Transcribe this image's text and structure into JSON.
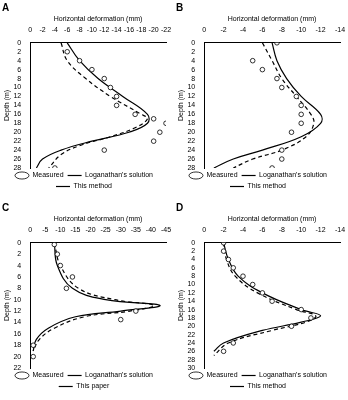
{
  "chart_data": [
    {
      "type": "scatter",
      "title": "A",
      "x_label": "Horizontal deformation (mm)",
      "y_label": "Depth (m)",
      "xlim": [
        0,
        -22
      ],
      "xticks": [
        0,
        -2,
        -4,
        -6,
        -8,
        -10,
        -12,
        -14,
        -16,
        -18,
        -20,
        -22
      ],
      "ylim": [
        28,
        0
      ],
      "yticks": [
        0,
        2,
        4,
        6,
        8,
        10,
        12,
        14,
        16,
        18,
        20,
        22,
        24,
        26,
        28
      ],
      "grid": false,
      "legend": "bottom",
      "series": [
        {
          "name": "Measured",
          "type": "scatter",
          "marker": "circle",
          "color": "#000000",
          "x": [
            -6,
            -8,
            -10,
            -12,
            -13,
            -14,
            -14,
            -17,
            -20,
            -22,
            -21,
            -20,
            -12,
            -4
          ],
          "y": [
            2,
            4,
            6,
            8,
            10,
            12,
            14,
            16,
            17,
            18,
            20,
            22,
            24,
            28
          ]
        },
        {
          "name": "Loganathan's solution",
          "type": "line",
          "line_style": "dashed",
          "color": "#000000",
          "x": [
            -5,
            -6,
            -9,
            -13,
            -18,
            -19,
            -17,
            -13,
            -8,
            -5,
            -3
          ],
          "y": [
            0,
            4,
            8,
            12,
            16,
            17,
            19,
            21,
            23,
            25,
            28
          ]
        },
        {
          "name": "This method",
          "type": "line",
          "line_style": "solid",
          "color": "#000000",
          "x": [
            -6,
            -8,
            -11,
            -15,
            -19,
            -19,
            -16,
            -10,
            -5,
            -2,
            -1
          ],
          "y": [
            0,
            4,
            8,
            12,
            16,
            18,
            20,
            22,
            24,
            26,
            28
          ]
        }
      ]
    },
    {
      "type": "scatter",
      "title": "B",
      "x_label": "Horizontal deformation (mm)",
      "y_label": "Depth (m)",
      "xlim": [
        0,
        -14
      ],
      "xticks": [
        0,
        -2,
        -4,
        -6,
        -8,
        -10,
        -12,
        -14
      ],
      "ylim": [
        28,
        0
      ],
      "yticks": [
        0,
        2,
        4,
        6,
        8,
        10,
        12,
        14,
        16,
        18,
        20,
        22,
        24,
        26,
        28
      ],
      "grid": false,
      "legend": "bottom",
      "series": [
        {
          "name": "Measured",
          "type": "scatter",
          "marker": "circle",
          "color": "#000000",
          "x": [
            -7.5,
            -5,
            -6,
            -7.5,
            -8,
            -9.5,
            -10,
            -10,
            -10,
            -9,
            -8,
            -8,
            -7
          ],
          "y": [
            0,
            4,
            6,
            8,
            10,
            12,
            14,
            16,
            18,
            20,
            24,
            26,
            28
          ]
        },
        {
          "name": "Loganathan's solution",
          "type": "line",
          "line_style": "dashed",
          "color": "#000000",
          "x": [
            -6,
            -7,
            -8,
            -9.5,
            -11,
            -11.3,
            -10.5,
            -8,
            -5,
            -3
          ],
          "y": [
            0,
            4,
            8,
            12,
            16,
            18,
            21,
            24,
            26,
            28
          ]
        },
        {
          "name": "This method",
          "type": "line",
          "line_style": "solid",
          "color": "#000000",
          "x": [
            -7,
            -7.5,
            -8.5,
            -10,
            -12,
            -12,
            -10,
            -6,
            -3,
            -1
          ],
          "y": [
            0,
            4,
            8,
            12,
            16,
            18,
            21,
            24,
            26,
            28
          ]
        }
      ]
    },
    {
      "type": "scatter",
      "title": "C",
      "x_label": "Horizontal deformation (mm)",
      "y_label": "Depth (m)",
      "xlim": [
        0,
        -45
      ],
      "xticks": [
        0,
        -5,
        -10,
        -15,
        -20,
        -25,
        -30,
        -35,
        -40,
        -45
      ],
      "ylim": [
        22,
        0
      ],
      "yticks": [
        0,
        2,
        4,
        6,
        8,
        10,
        12,
        14,
        16,
        18,
        20,
        22
      ],
      "grid": false,
      "legend": "bottom",
      "series": [
        {
          "name": "Measured",
          "type": "scatter",
          "marker": "circle",
          "color": "#000000",
          "x": [
            -8,
            -9,
            -10,
            -14,
            -12,
            -35,
            -30,
            -1,
            -1
          ],
          "y": [
            0.3,
            2,
            4,
            6,
            8,
            12,
            13.5,
            18,
            20
          ]
        },
        {
          "name": "Loganathan's solution",
          "type": "line",
          "line_style": "dashed",
          "color": "#000000",
          "x": [
            -8,
            -10,
            -16,
            -28,
            -41,
            -33,
            -18,
            -8,
            -3,
            -1
          ],
          "y": [
            0,
            4,
            8,
            10,
            11,
            12,
            13,
            15,
            17,
            19
          ]
        },
        {
          "name": "This paper",
          "type": "line",
          "line_style": "solid",
          "color": "#000000",
          "x": [
            -8,
            -9,
            -14,
            -25,
            -43,
            -30,
            -15,
            -6,
            -2,
            -1
          ],
          "y": [
            0,
            4,
            8,
            10,
            11,
            12,
            13,
            15,
            17,
            19
          ]
        }
      ]
    },
    {
      "type": "scatter",
      "title": "D",
      "x_label": "Horizontal deformation (mm)",
      "y_label": "Depth (m)",
      "xlim": [
        0,
        -14
      ],
      "xticks": [
        0,
        -2,
        -4,
        -6,
        -8,
        -10,
        -12,
        -14
      ],
      "ylim": [
        30,
        0
      ],
      "yticks": [
        0,
        2,
        4,
        6,
        8,
        10,
        12,
        14,
        16,
        18,
        20,
        22,
        24,
        26,
        28,
        30
      ],
      "grid": false,
      "legend": "bottom",
      "series": [
        {
          "name": "Measured",
          "type": "scatter",
          "marker": "circle",
          "color": "#000000",
          "x": [
            -2,
            -2,
            -2.5,
            -3,
            -4,
            -5,
            -6,
            -7,
            -10,
            -11,
            -9,
            -3,
            -2
          ],
          "y": [
            0,
            2,
            4,
            6,
            8,
            10,
            12,
            14,
            16,
            18,
            20,
            24,
            26
          ]
        },
        {
          "name": "Loganathan's solution",
          "type": "line",
          "line_style": "dashed",
          "color": "#000000",
          "x": [
            -2,
            -2.3,
            -3.2,
            -5.5,
            -9.5,
            -11.5,
            -10.5,
            -7,
            -2.5,
            -1
          ],
          "y": [
            0,
            4,
            8,
            12,
            16,
            17.5,
            19,
            21,
            24,
            27
          ]
        },
        {
          "name": "This method",
          "type": "line",
          "line_style": "solid",
          "color": "#000000",
          "x": [
            -2,
            -2.5,
            -3.5,
            -6,
            -10,
            -12,
            -10,
            -6,
            -2,
            -1
          ],
          "y": [
            0,
            4,
            8,
            12,
            16,
            17.5,
            19,
            21,
            24,
            26
          ]
        }
      ]
    }
  ]
}
